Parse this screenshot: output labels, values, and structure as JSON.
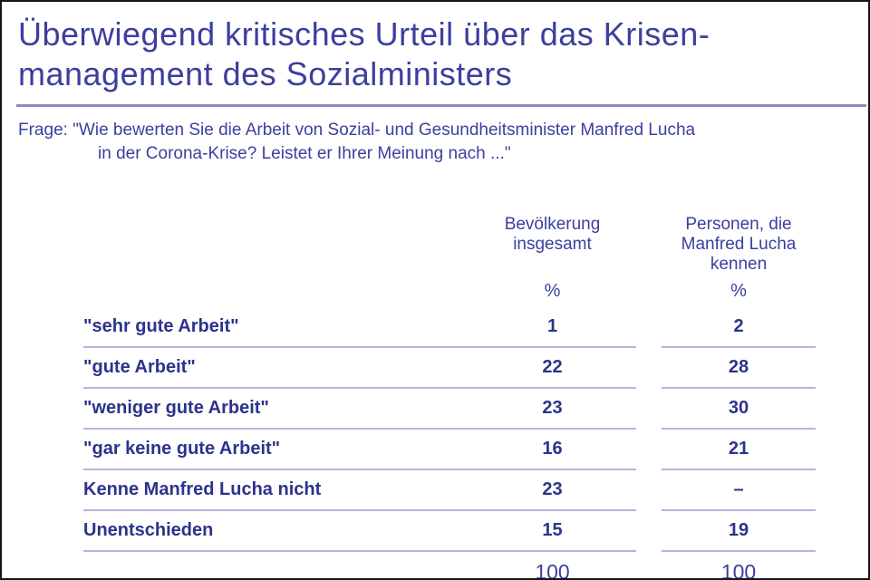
{
  "title": {
    "line1": "Überwiegend kritisches Urteil über das Krisen-",
    "line2": "management des Sozialministers"
  },
  "question": {
    "line1": "Frage: \"Wie bewerten Sie die Arbeit von Sozial- und Gesundheitsminister Manfred Lucha",
    "line2": "in der Corona-Krise? Leistet er Ihrer Meinung nach ...\""
  },
  "table": {
    "col1_header_line1": "Bevölkerung",
    "col1_header_line2": "insgesamt",
    "col2_header_line1": "Personen, die",
    "col2_header_line2": "Manfred Lucha",
    "col2_header_line3": "kennen",
    "percent_symbol": "%",
    "rows": [
      {
        "label": "\"sehr gute Arbeit\"",
        "v1": "1",
        "v2": "2"
      },
      {
        "label": "\"gute Arbeit\"",
        "v1": "22",
        "v2": "28"
      },
      {
        "label": "\"weniger gute Arbeit\"",
        "v1": "23",
        "v2": "30"
      },
      {
        "label": "\"gar keine gute Arbeit\"",
        "v1": "16",
        "v2": "21"
      },
      {
        "label": "Kenne Manfred Lucha nicht",
        "v1": "23",
        "v2": "–"
      },
      {
        "label": "Unentschieden",
        "v1": "15",
        "v2": "19"
      }
    ],
    "total1": "100",
    "total2": "100"
  },
  "colors": {
    "heading_blue": "#3b3f9e",
    "value_navy": "#2b338c",
    "title_rule": "#8d89c4",
    "row_separator": "#b3b6d8",
    "frame": "#161616",
    "background": "#ffffff"
  },
  "chart_data": {
    "type": "table",
    "title": "Überwiegend kritisches Urteil über das Krisenmanagement des Sozialministers",
    "question": "Frage: \"Wie bewerten Sie die Arbeit von Sozial- und Gesundheitsminister Manfred Lucha in der Corona-Krise? Leistet er Ihrer Meinung nach ...\"",
    "unit": "%",
    "columns": [
      "Bevölkerung insgesamt",
      "Personen, die Manfred Lucha kennen"
    ],
    "categories": [
      "\"sehr gute Arbeit\"",
      "\"gute Arbeit\"",
      "\"weniger gute Arbeit\"",
      "\"gar keine gute Arbeit\"",
      "Kenne Manfred Lucha nicht",
      "Unentschieden"
    ],
    "series": [
      {
        "name": "Bevölkerung insgesamt",
        "values": [
          1,
          22,
          23,
          16,
          23,
          15
        ],
        "total": 100
      },
      {
        "name": "Personen, die Manfred Lucha kennen",
        "values": [
          2,
          28,
          30,
          21,
          null,
          19
        ],
        "total": 100
      }
    ]
  }
}
